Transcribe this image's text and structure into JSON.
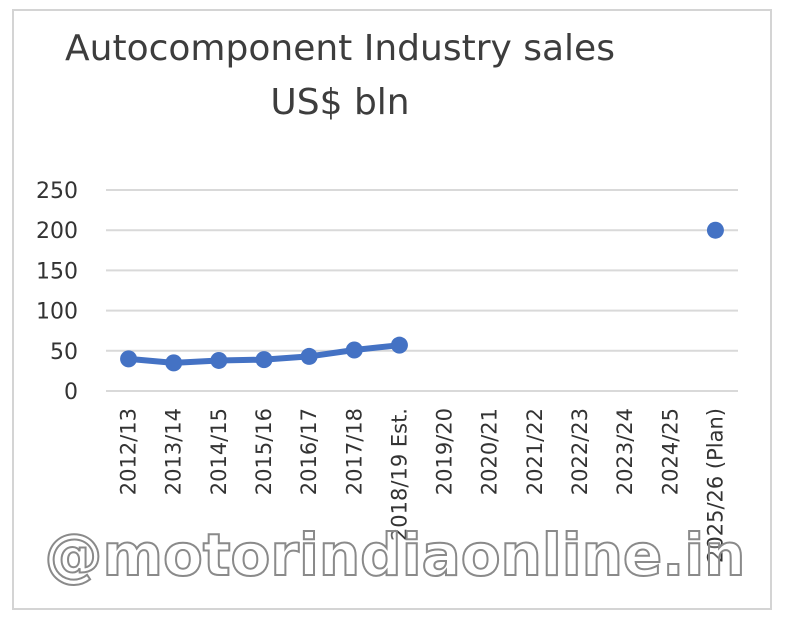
{
  "chart_data": {
    "type": "line",
    "title_line1": "Autocomponent Industry sales",
    "title_line2": "US$ bln",
    "categories": [
      "2012/13",
      "2013/14",
      "2014/15",
      "2015/16",
      "2016/17",
      "2017/18",
      "2018/19 Est.",
      "2019/20",
      "2020/21",
      "2021/22",
      "2022/23",
      "2023/24",
      "2024/25",
      "2025/26 (Plan)"
    ],
    "series": [
      {
        "values": [
          40,
          35,
          38,
          39,
          43,
          51,
          57,
          null,
          null,
          null,
          null,
          null,
          null,
          200
        ]
      }
    ],
    "ylim": [
      0,
      250
    ],
    "yticks": [
      0,
      50,
      100,
      150,
      200,
      250
    ],
    "grid": true,
    "legend": "none",
    "color": "#4472c4"
  },
  "watermark": "@motorindiaonline.in"
}
